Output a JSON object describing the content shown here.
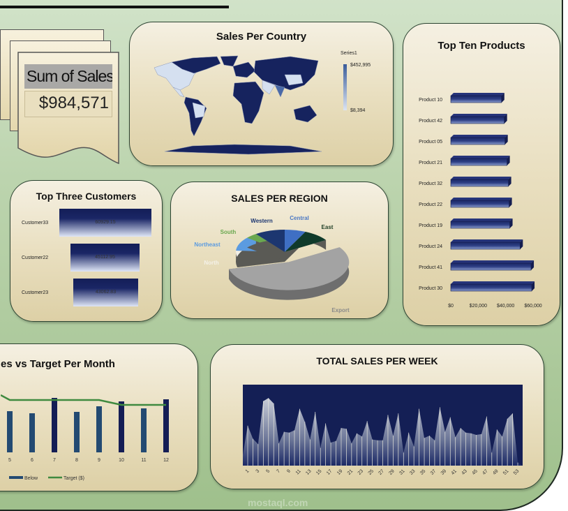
{
  "kpi": {
    "title": "Sum of Sales",
    "value": "$984,571"
  },
  "map": {
    "title": "Sales Per Country",
    "legend_title": "Series1",
    "legend_max": "$452,995",
    "legend_min": "$8,394",
    "colors": {
      "high": "#16235e",
      "low": "#d5e0f0"
    }
  },
  "products": {
    "title": "Top Ten Products"
  },
  "customers": {
    "title": "Top Three Customers"
  },
  "region": {
    "title": "SALES PER REGION"
  },
  "monthly": {
    "title": "es vs Target Per Month",
    "legend_below": "Below",
    "legend_target": "Target ($)"
  },
  "weekly": {
    "title": "TOTAL SALES PER WEEK"
  },
  "watermark": "mostaql.com",
  "chart_data": [
    {
      "id": "products",
      "type": "bar",
      "orientation": "horizontal",
      "categories": [
        "Product 10",
        "Product 42",
        "Product 05",
        "Product 21",
        "Product 32",
        "Product 22",
        "Product 19",
        "Product 24",
        "Product 41",
        "Product 30"
      ],
      "values": [
        37000,
        39000,
        39500,
        41000,
        42000,
        42500,
        43000,
        50500,
        58500,
        59000
      ],
      "xlim": [
        0,
        60000
      ],
      "xticks": [
        "$0",
        "$20,000",
        "$40,000",
        "$60,000"
      ],
      "color": "#1b2866"
    },
    {
      "id": "customers",
      "type": "bar",
      "orientation": "horizontal",
      "categories": [
        "Customer33",
        "Customer22",
        "Customer23"
      ],
      "values": [
        "60929.15",
        "45112.95",
        "43062.83"
      ],
      "color": "#16205a"
    },
    {
      "id": "region",
      "type": "pie",
      "categories": [
        "Central",
        "East",
        "Export",
        "North",
        "Northeast",
        "South",
        "Western"
      ],
      "values": [
        7,
        9,
        55,
        5,
        10,
        4,
        10
      ],
      "colors": [
        "#3f6fc4",
        "#0f3a2a",
        "#a3a3a3",
        "#f2efe6",
        "#5b9be0",
        "#6aa84f",
        "#1c3670"
      ],
      "label_colors": [
        "#4c78c4",
        "#1d3d24",
        "#8a8a8a",
        "#f4f1e8",
        "#5b9be0",
        "#6aa84f",
        "#1c3670"
      ]
    },
    {
      "id": "monthly",
      "type": "bar+line",
      "categories": [
        "5",
        "6",
        "7",
        "8",
        "9",
        "10",
        "11",
        "12"
      ],
      "series": [
        {
          "name": "Below",
          "values": [
            59,
            56,
            78,
            58,
            66,
            73,
            63,
            76
          ],
          "above": [
            false,
            false,
            true,
            false,
            false,
            true,
            false,
            true
          ],
          "color": "#234a72",
          "above_color": "#141d55"
        },
        {
          "name": "Target ($)",
          "type": "line",
          "values": [
            75,
            75,
            75,
            75,
            75,
            68,
            68,
            68
          ],
          "start": 82,
          "color": "#3f8a3f"
        }
      ]
    },
    {
      "id": "weekly",
      "type": "area",
      "x": [
        1,
        2,
        3,
        4,
        5,
        6,
        7,
        8,
        9,
        10,
        11,
        12,
        13,
        14,
        15,
        16,
        17,
        18,
        19,
        20,
        21,
        22,
        23,
        24,
        25,
        26,
        27,
        28,
        29,
        30,
        31,
        32,
        33,
        34,
        35,
        36,
        37,
        38,
        39,
        40,
        41,
        42,
        43,
        44,
        45,
        46,
        47,
        48,
        49,
        50,
        51,
        52,
        53
      ],
      "xticks": [
        "1",
        "3",
        "5",
        "7",
        "9",
        "11",
        "13",
        "15",
        "17",
        "19",
        "21",
        "23",
        "25",
        "27",
        "29",
        "31",
        "33",
        "35",
        "37",
        "39",
        "41",
        "43",
        "45",
        "47",
        "49",
        "51",
        "53"
      ],
      "values": [
        52,
        35,
        28,
        84,
        88,
        81,
        29,
        44,
        43,
        46,
        74,
        57,
        34,
        70,
        23,
        55,
        30,
        32,
        49,
        48,
        29,
        42,
        38,
        58,
        34,
        33,
        33,
        66,
        39,
        68,
        17,
        43,
        25,
        74,
        36,
        39,
        33,
        76,
        44,
        63,
        37,
        49,
        43,
        42,
        40,
        41,
        64,
        17,
        47,
        38,
        61,
        68,
        4
      ],
      "plot_bg": "#141f55"
    }
  ]
}
